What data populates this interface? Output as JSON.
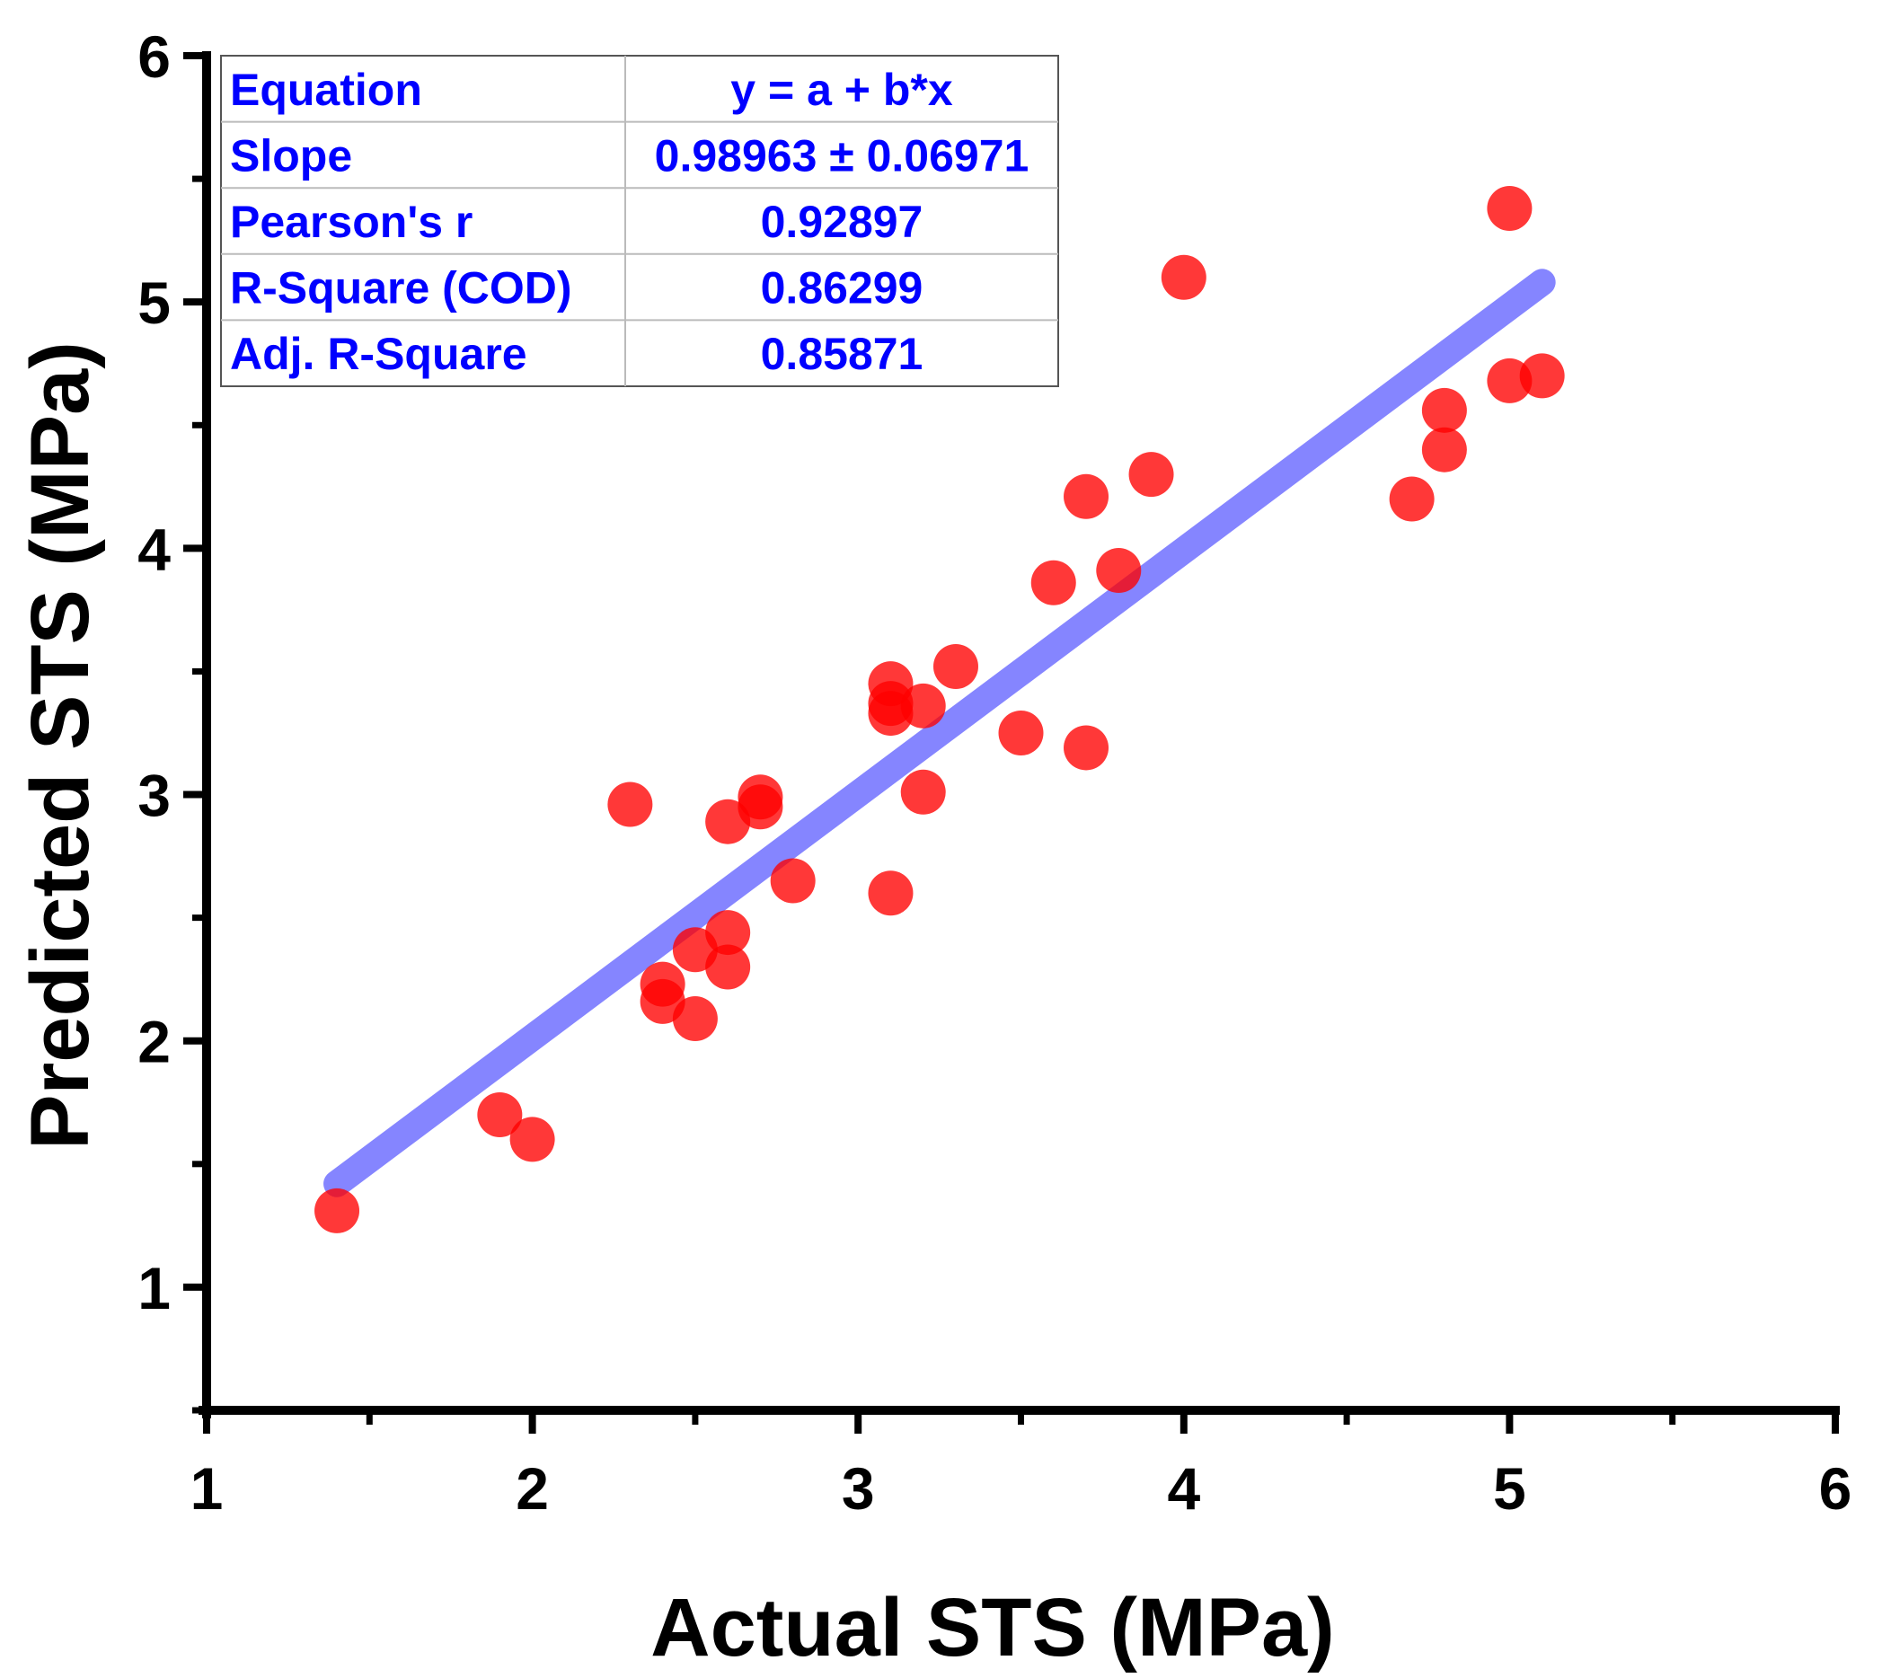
{
  "chart_data": {
    "type": "scatter",
    "xlabel": "Actual STS (MPa)",
    "ylabel": "Predicted STS (MPa)",
    "xlim": [
      1,
      6
    ],
    "ylim": [
      0.5,
      6
    ],
    "xticks": [
      1,
      2,
      3,
      4,
      5,
      6
    ],
    "yticks": [
      1,
      2,
      3,
      4,
      5,
      6
    ],
    "grid": false,
    "series": [
      {
        "marker": "circle",
        "color": "#ff0000",
        "points": [
          {
            "x": 1.4,
            "y": 1.31
          },
          {
            "x": 1.9,
            "y": 1.7
          },
          {
            "x": 2.0,
            "y": 1.6
          },
          {
            "x": 2.3,
            "y": 2.96
          },
          {
            "x": 2.4,
            "y": 2.23
          },
          {
            "x": 2.4,
            "y": 2.16
          },
          {
            "x": 2.5,
            "y": 2.09
          },
          {
            "x": 2.5,
            "y": 2.37
          },
          {
            "x": 2.6,
            "y": 2.44
          },
          {
            "x": 2.6,
            "y": 2.3
          },
          {
            "x": 2.6,
            "y": 2.89
          },
          {
            "x": 2.7,
            "y": 2.95
          },
          {
            "x": 2.7,
            "y": 2.99
          },
          {
            "x": 2.8,
            "y": 2.65
          },
          {
            "x": 3.1,
            "y": 2.6
          },
          {
            "x": 3.1,
            "y": 3.45
          },
          {
            "x": 3.1,
            "y": 3.33
          },
          {
            "x": 3.1,
            "y": 3.37
          },
          {
            "x": 3.2,
            "y": 3.36
          },
          {
            "x": 3.2,
            "y": 3.01
          },
          {
            "x": 3.3,
            "y": 3.52
          },
          {
            "x": 3.5,
            "y": 3.25
          },
          {
            "x": 3.6,
            "y": 3.86
          },
          {
            "x": 3.7,
            "y": 3.19
          },
          {
            "x": 3.7,
            "y": 4.21
          },
          {
            "x": 3.8,
            "y": 3.91
          },
          {
            "x": 3.9,
            "y": 4.3
          },
          {
            "x": 4.0,
            "y": 5.1
          },
          {
            "x": 4.7,
            "y": 4.2
          },
          {
            "x": 4.8,
            "y": 4.56
          },
          {
            "x": 4.8,
            "y": 4.4
          },
          {
            "x": 5.0,
            "y": 5.38
          },
          {
            "x": 5.0,
            "y": 4.68
          },
          {
            "x": 5.1,
            "y": 4.7
          }
        ]
      }
    ],
    "fit_line": {
      "color": "#7f7fff",
      "x": [
        1.4,
        5.1
      ],
      "y": [
        1.42,
        5.08
      ]
    },
    "stats_table": {
      "color": "#0000ff",
      "rows": [
        {
          "label": "Equation",
          "value": "y = a + b*x"
        },
        {
          "label": "Slope",
          "value": "0.98963 ± 0.06971"
        },
        {
          "label": "Pearson's r",
          "value": "0.92897"
        },
        {
          "label": "R-Square (COD)",
          "value": "0.86299"
        },
        {
          "label": "Adj. R-Square",
          "value": "0.85871"
        }
      ]
    }
  }
}
